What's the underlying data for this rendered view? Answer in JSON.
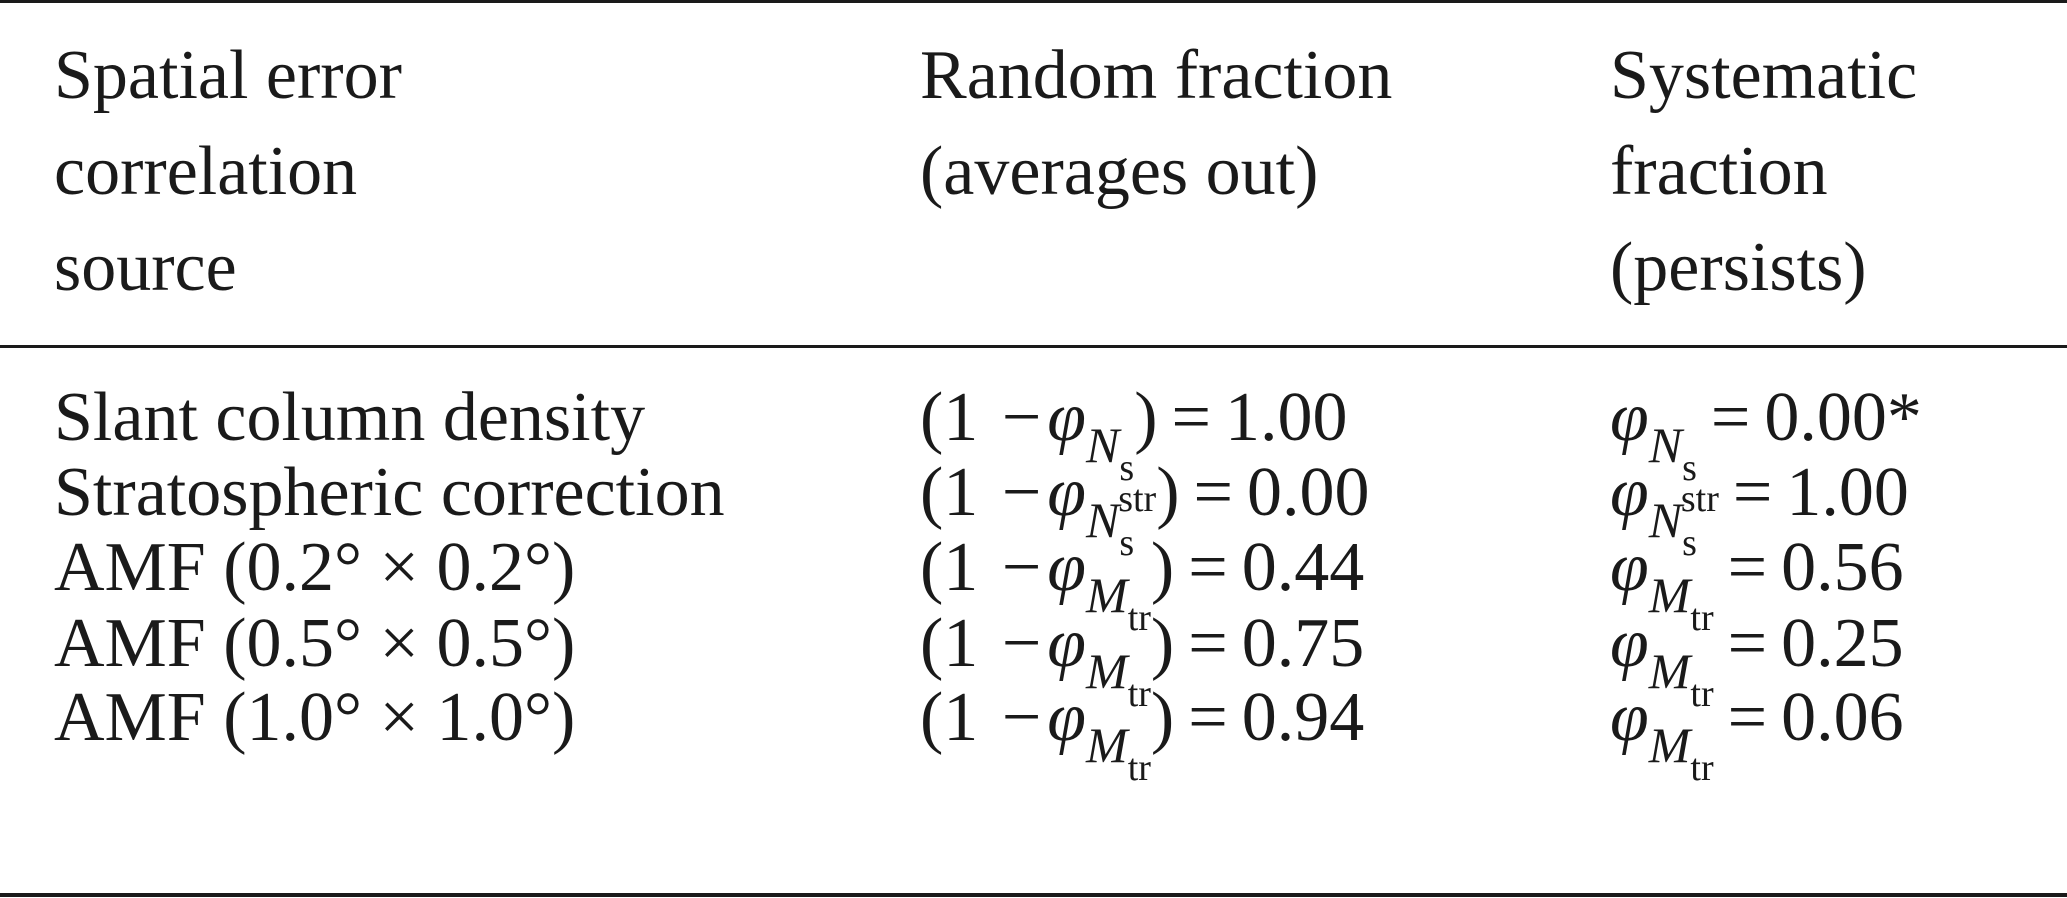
{
  "table": {
    "headers": [
      [
        "Spatial error",
        "correlation",
        "source"
      ],
      [
        "Random fraction",
        "(averages out)"
      ],
      [
        "Systematic",
        "fraction",
        "(persists)"
      ]
    ],
    "rows": [
      {
        "source": "Slant column density",
        "random": {
          "prefix": "(1 −",
          "phi": "φ",
          "var": "N",
          "sub": "s",
          "sup": "",
          "suffix": ")",
          "eq": "=",
          "value": "1.00"
        },
        "systematic": {
          "phi": "φ",
          "var": "N",
          "sub": "s",
          "sup": "",
          "eq": "=",
          "value": "0.00*"
        }
      },
      {
        "source": "Stratospheric correction",
        "random": {
          "prefix": "(1 −",
          "phi": "φ",
          "var": "N",
          "sub": "s",
          "sup": "str",
          "suffix": ")",
          "eq": "=",
          "value": "0.00"
        },
        "systematic": {
          "phi": "φ",
          "var": "N",
          "sub": "s",
          "sup": "str",
          "eq": "=",
          "value": "1.00"
        }
      },
      {
        "source": "AMF (0.2° × 0.2°)",
        "random": {
          "prefix": "(1 −",
          "phi": "φ",
          "var": "M",
          "sub": "tr",
          "sup": "",
          "suffix": ")",
          "eq": "=",
          "value": "0.44"
        },
        "systematic": {
          "phi": "φ",
          "var": "M",
          "sub": "tr",
          "sup": "",
          "eq": "=",
          "value": "0.56"
        }
      },
      {
        "source": "AMF (0.5° × 0.5°)",
        "random": {
          "prefix": "(1 −",
          "phi": "φ",
          "var": "M",
          "sub": "tr",
          "sup": "",
          "suffix": ")",
          "eq": "=",
          "value": "0.75"
        },
        "systematic": {
          "phi": "φ",
          "var": "M",
          "sub": "tr",
          "sup": "",
          "eq": "=",
          "value": "0.25"
        }
      },
      {
        "source": "AMF (1.0° × 1.0°)",
        "random": {
          "prefix": "(1 −",
          "phi": "φ",
          "var": "M",
          "sub": "tr",
          "sup": "",
          "suffix": ")",
          "eq": "=",
          "value": "0.94"
        },
        "systematic": {
          "phi": "φ",
          "var": "M",
          "sub": "tr",
          "sup": "",
          "eq": "=",
          "value": "0.06"
        }
      }
    ]
  }
}
